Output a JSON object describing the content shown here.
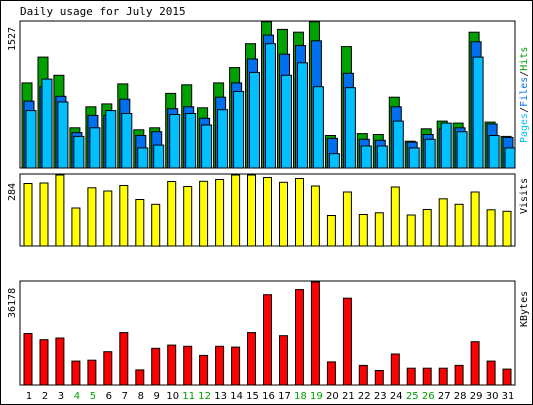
{
  "title": "Daily usage for July 2015",
  "colors": {
    "hits": "#00a000",
    "files": "#0070f0",
    "pages": "#00c0ff",
    "visits": "#ffff00",
    "kbytes": "#ff0000",
    "outline": "#000000",
    "weekday_label": "#000000",
    "weekend_label": "#00a000",
    "panel_border": "#000000"
  },
  "chart_data": [
    {
      "type": "bar",
      "panel": "pages-files-hits",
      "title": "",
      "ylabel_parts": [
        "Pages",
        "/",
        "Files",
        "/",
        "Hits"
      ],
      "ymax_label": "1527",
      "ylim": [
        0,
        1527
      ],
      "categories": [
        "1",
        "2",
        "3",
        "4",
        "5",
        "6",
        "7",
        "8",
        "9",
        "10",
        "11",
        "12",
        "13",
        "14",
        "15",
        "16",
        "17",
        "18",
        "19",
        "20",
        "21",
        "22",
        "23",
        "24",
        "25",
        "26",
        "27",
        "28",
        "29",
        "30",
        "31"
      ],
      "weekend_days": [
        "4",
        "5",
        "11",
        "12",
        "18",
        "19",
        "25",
        "26"
      ],
      "series": [
        {
          "name": "Hits",
          "values": [
            890,
            1160,
            970,
            420,
            640,
            670,
            880,
            400,
            420,
            780,
            870,
            630,
            890,
            1050,
            1300,
            1530,
            1450,
            1420,
            1530,
            340,
            1270,
            360,
            350,
            740,
            280,
            410,
            490,
            470,
            1420,
            480,
            330
          ]
        },
        {
          "name": "Files",
          "values": [
            700,
            850,
            750,
            370,
            550,
            550,
            720,
            340,
            380,
            620,
            640,
            520,
            740,
            890,
            1140,
            1390,
            1190,
            1280,
            1330,
            310,
            990,
            300,
            290,
            640,
            270,
            350,
            410,
            420,
            1320,
            460,
            320
          ]
        },
        {
          "name": "Pages",
          "values": [
            600,
            930,
            690,
            330,
            420,
            600,
            570,
            210,
            240,
            560,
            570,
            450,
            610,
            800,
            1000,
            1300,
            970,
            1100,
            850,
            150,
            840,
            230,
            230,
            490,
            210,
            300,
            470,
            380,
            1160,
            340,
            210
          ]
        }
      ]
    },
    {
      "type": "bar",
      "panel": "visits",
      "title": "",
      "ylabel": "Visits",
      "ymax_label": "284",
      "ylim": [
        0,
        284
      ],
      "categories": [
        "1",
        "2",
        "3",
        "4",
        "5",
        "6",
        "7",
        "8",
        "9",
        "10",
        "11",
        "12",
        "13",
        "14",
        "15",
        "16",
        "17",
        "18",
        "19",
        "20",
        "21",
        "22",
        "23",
        "24",
        "25",
        "26",
        "27",
        "28",
        "29",
        "30",
        "31"
      ],
      "series": [
        {
          "name": "Visits",
          "values": [
            250,
            252,
            284,
            152,
            233,
            220,
            242,
            186,
            167,
            258,
            238,
            259,
            266,
            284,
            284,
            274,
            255,
            270,
            240,
            122,
            216,
            126,
            133,
            236,
            124,
            146,
            189,
            167,
            216,
            145,
            139
          ]
        }
      ]
    },
    {
      "type": "bar",
      "panel": "kbytes",
      "title": "",
      "ylabel": "KBytes",
      "ymax_label": "36178",
      "ylim": [
        0,
        36178
      ],
      "categories": [
        "1",
        "2",
        "3",
        "4",
        "5",
        "6",
        "7",
        "8",
        "9",
        "10",
        "11",
        "12",
        "13",
        "14",
        "15",
        "16",
        "17",
        "18",
        "19",
        "20",
        "21",
        "22",
        "23",
        "24",
        "25",
        "26",
        "27",
        "28",
        "29",
        "30",
        "31"
      ],
      "series": [
        {
          "name": "KBytes",
          "values": [
            18100,
            15900,
            16500,
            8400,
            8700,
            11700,
            18400,
            5300,
            12900,
            14000,
            13600,
            10400,
            13600,
            13300,
            18400,
            31700,
            17300,
            33500,
            36178,
            8100,
            30500,
            6900,
            5100,
            10900,
            5900,
            5900,
            5900,
            6900,
            15200,
            8400,
            5600
          ]
        }
      ]
    }
  ]
}
